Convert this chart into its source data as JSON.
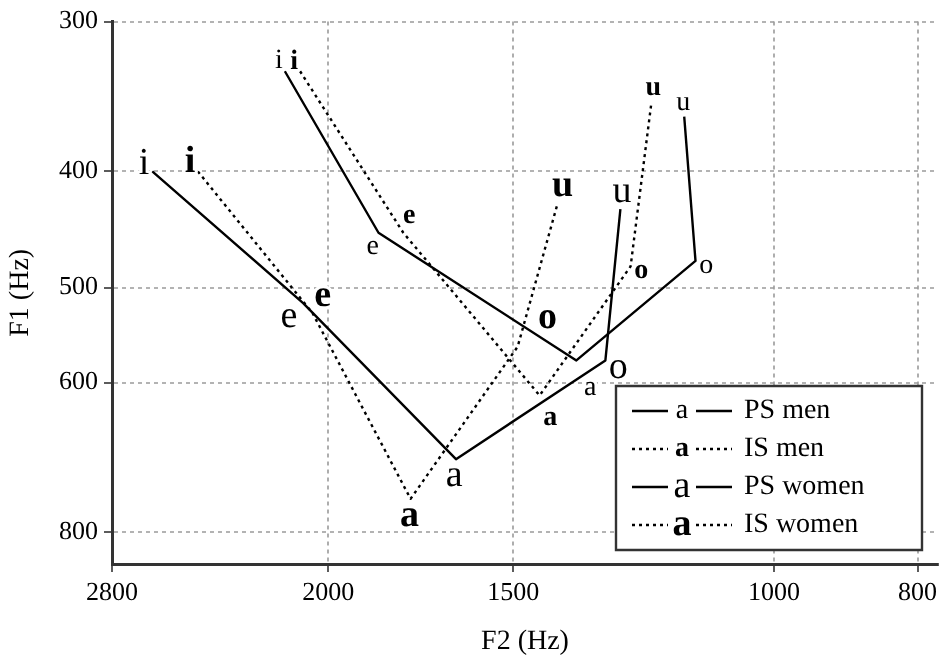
{
  "chart_data": {
    "type": "line",
    "xlabel": "F2 (Hz)",
    "ylabel": "F1 (Hz)",
    "log": "xy",
    "xlim": [
      2800,
      775
    ],
    "xticks": [
      2800,
      2000,
      1500,
      1000,
      800
    ],
    "ylim": [
      850,
      300
    ],
    "yticks": [
      300,
      400,
      500,
      600,
      800
    ],
    "grid": true,
    "legend": "bottom right",
    "marker": "none",
    "series": [
      {
        "name": "PS men",
        "color": "#000000",
        "line_style": "solid",
        "x": [
          2140,
          1850,
          1360,
          1130,
          1150
        ],
        "values": [
          330,
          450,
          575,
          475,
          360
        ],
        "value_labels": [
          "i",
          "e",
          "a",
          "o",
          "u"
        ]
      },
      {
        "name": "IS men",
        "color": "#000000",
        "line_style": "dotted",
        "x": [
          2090,
          1780,
          1440,
          1250,
          1210
        ],
        "values": [
          330,
          450,
          615,
          480,
          350
        ],
        "value_labels": [
          "i",
          "e",
          "a",
          "o",
          "u"
        ]
      },
      {
        "name": "PS women",
        "color": "#000000",
        "line_style": "solid",
        "x": [
          2630,
          2080,
          1640,
          1300,
          1270
        ],
        "values": [
          400,
          515,
          695,
          575,
          430
        ],
        "value_labels": [
          "i",
          "e",
          "a",
          "o",
          "u"
        ]
      },
      {
        "name": "IS women",
        "color": "#000000",
        "line_style": "dotted",
        "x": [
          2450,
          2050,
          1760,
          1490,
          1400
        ],
        "values": [
          400,
          525,
          750,
          560,
          425
        ],
        "value_labels": [
          "i",
          "e",
          "a",
          "o",
          "u"
        ]
      }
    ]
  }
}
